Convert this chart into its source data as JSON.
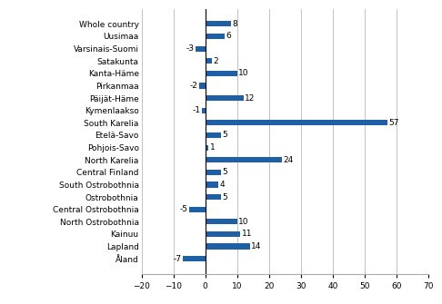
{
  "categories": [
    "Whole country",
    "Uusimaa",
    "Varsinais-Suomi",
    "Satakunta",
    "Kanta-Häme",
    "Pirkanmaa",
    "Päijät-Häme",
    "Kymenlaakso",
    "South Karelia",
    "Etelä-Savo",
    "Pohjois-Savo",
    "North Karelia",
    "Central Finland",
    "South Ostrobothnia",
    "Ostrobothnia",
    "Central Ostrobothnia",
    "North Ostrobothnia",
    "Kainuu",
    "Lapland",
    "Åland"
  ],
  "values": [
    8,
    6,
    -3,
    2,
    10,
    -2,
    12,
    -1,
    57,
    5,
    1,
    24,
    5,
    4,
    5,
    -5,
    10,
    11,
    14,
    -7
  ],
  "bar_color": "#1F5FA6",
  "xlim": [
    -20,
    70
  ],
  "xticks": [
    -20,
    -10,
    0,
    10,
    20,
    30,
    40,
    50,
    60,
    70
  ],
  "label_fontsize": 6.5,
  "tick_fontsize": 6.5,
  "bar_height": 0.45,
  "background_color": "#ffffff"
}
